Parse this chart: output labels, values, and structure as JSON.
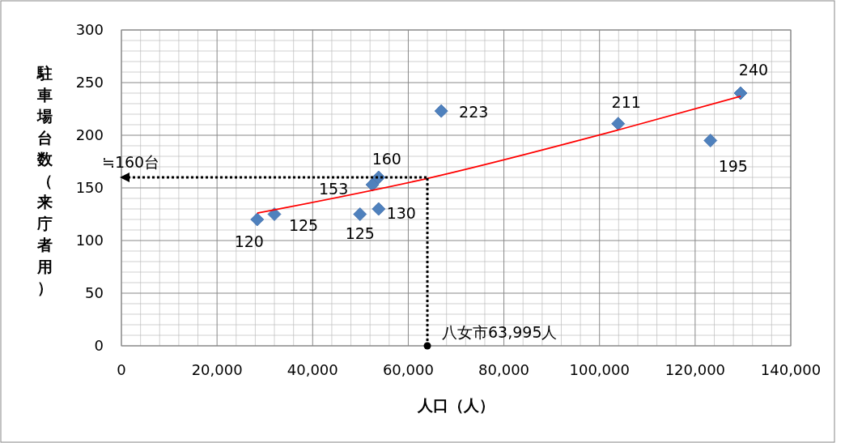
{
  "chart_data": {
    "type": "scatter",
    "xlabel": "人口（人）",
    "ylabel": "駐車場台数（来庁者用）",
    "xlim": [
      0,
      140000
    ],
    "xticks": [
      {
        "value": 0,
        "label": "0"
      },
      {
        "value": 20000,
        "label": "20,000"
      },
      {
        "value": 40000,
        "label": "40,000"
      },
      {
        "value": 60000,
        "label": "60,000"
      },
      {
        "value": 80000,
        "label": "80,000"
      },
      {
        "value": 100000,
        "label": "100,000"
      },
      {
        "value": 120000,
        "label": "120,000"
      },
      {
        "value": 140000,
        "label": "140,000"
      }
    ],
    "ylim": [
      0,
      300
    ],
    "yticks": [
      0,
      50,
      100,
      150,
      200,
      250,
      300
    ],
    "grid": true,
    "series": [
      {
        "color": "#4f81bd",
        "marker": "diamond",
        "data_labels": true,
        "x": [
          28400,
          32000,
          49900,
          52500,
          53800,
          53800,
          66900,
          103900,
          123200,
          129500
        ],
        "values": [
          120,
          125,
          125,
          153,
          160,
          130,
          223,
          211,
          195,
          240
        ]
      },
      {
        "type": "line",
        "color": "#ff0000",
        "marker": "none",
        "line_style": "solid",
        "x": [
          28400,
          64000,
          103900,
          129500
        ],
        "values": [
          126,
          159,
          205,
          237
        ]
      }
    ],
    "ref_lines": [
      {
        "axis": "x",
        "value": 63995,
        "label": "八女市63,995人",
        "line_style": "dotted",
        "color": "#000000"
      },
      {
        "axis": "y",
        "value": 160,
        "label": "≒160台",
        "line_style": "dotted",
        "color": "#000000"
      }
    ]
  }
}
